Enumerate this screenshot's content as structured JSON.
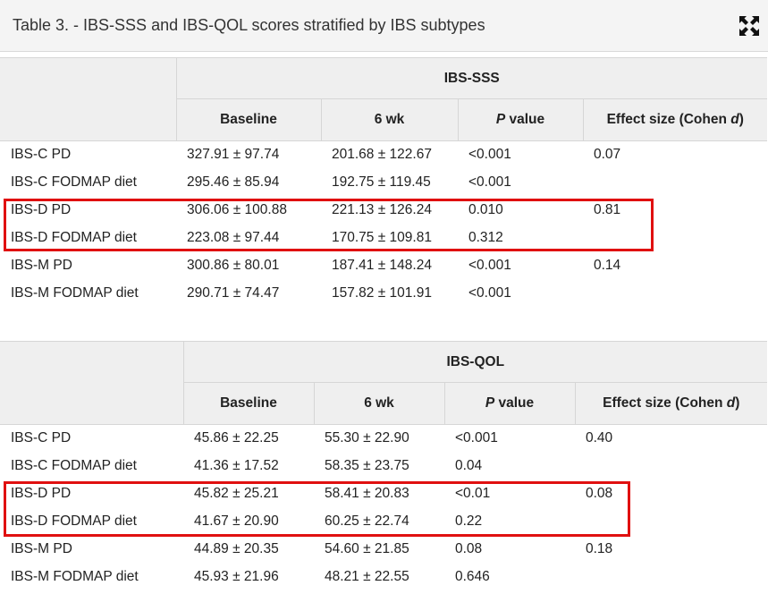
{
  "title": "Table 3. - IBS-SSS and IBS-QOL scores stratified by IBS subtypes",
  "icons": {
    "expand": "expand-arrows-icon"
  },
  "colors": {
    "highlight": "#e01010",
    "header_bg": "#efefef"
  },
  "tables": [
    {
      "group_header": "IBS-SSS",
      "columns": {
        "baseline": "Baseline",
        "wk6": "6 wk",
        "p_italic": "P",
        "p_rest": " value",
        "effect_prefix": "Effect size (Cohen ",
        "effect_italic": "d",
        "effect_suffix": ")"
      },
      "rows": [
        {
          "label": "IBS-C PD",
          "baseline": "327.91 ± 97.74",
          "wk6": "201.68 ± 122.67",
          "p": "<0.001",
          "effect": "0.07"
        },
        {
          "label": "IBS-C FODMAP diet",
          "baseline": "295.46 ± 85.94",
          "wk6": "192.75 ± 119.45",
          "p": "<0.001",
          "effect": ""
        },
        {
          "label": "IBS-D PD",
          "baseline": "306.06 ± 100.88",
          "wk6": "221.13 ± 126.24",
          "p": "0.010",
          "effect": "0.81"
        },
        {
          "label": "IBS-D FODMAP diet",
          "baseline": "223.08 ± 97.44",
          "wk6": "170.75 ± 109.81",
          "p": "0.312",
          "effect": ""
        },
        {
          "label": "IBS-M PD",
          "baseline": "300.86 ± 80.01",
          "wk6": "187.41 ± 148.24",
          "p": "<0.001",
          "effect": "0.14"
        },
        {
          "label": "IBS-M FODMAP diet",
          "baseline": "290.71 ± 74.47",
          "wk6": "157.82 ± 101.91",
          "p": "<0.001",
          "effect": ""
        }
      ]
    },
    {
      "group_header": "IBS-QOL",
      "columns": {
        "baseline": "Baseline",
        "wk6": "6 wk",
        "p_italic": "P",
        "p_rest": " value",
        "effect_prefix": "Effect size (Cohen ",
        "effect_italic": "d",
        "effect_suffix": ")"
      },
      "rows": [
        {
          "label": "IBS-C PD",
          "baseline": "45.86 ± 22.25",
          "wk6": "55.30 ± 22.90",
          "p": "<0.001",
          "effect": "0.40"
        },
        {
          "label": "IBS-C FODMAP diet",
          "baseline": "41.36 ± 17.52",
          "wk6": "58.35 ± 23.75",
          "p": "0.04",
          "effect": ""
        },
        {
          "label": "IBS-D PD",
          "baseline": "45.82 ± 25.21",
          "wk6": "58.41 ± 20.83",
          "p": "<0.01",
          "effect": "0.08"
        },
        {
          "label": "IBS-D FODMAP diet",
          "baseline": "41.67 ± 20.90",
          "wk6": "60.25 ± 22.74",
          "p": "0.22",
          "effect": ""
        },
        {
          "label": "IBS-M PD",
          "baseline": "44.89 ± 20.35",
          "wk6": "54.60 ± 21.85",
          "p": "0.08",
          "effect": "0.18"
        },
        {
          "label": "IBS-M FODMAP diet",
          "baseline": "45.93 ± 21.96",
          "wk6": "48.21 ± 22.55",
          "p": "0.646",
          "effect": ""
        }
      ]
    }
  ]
}
